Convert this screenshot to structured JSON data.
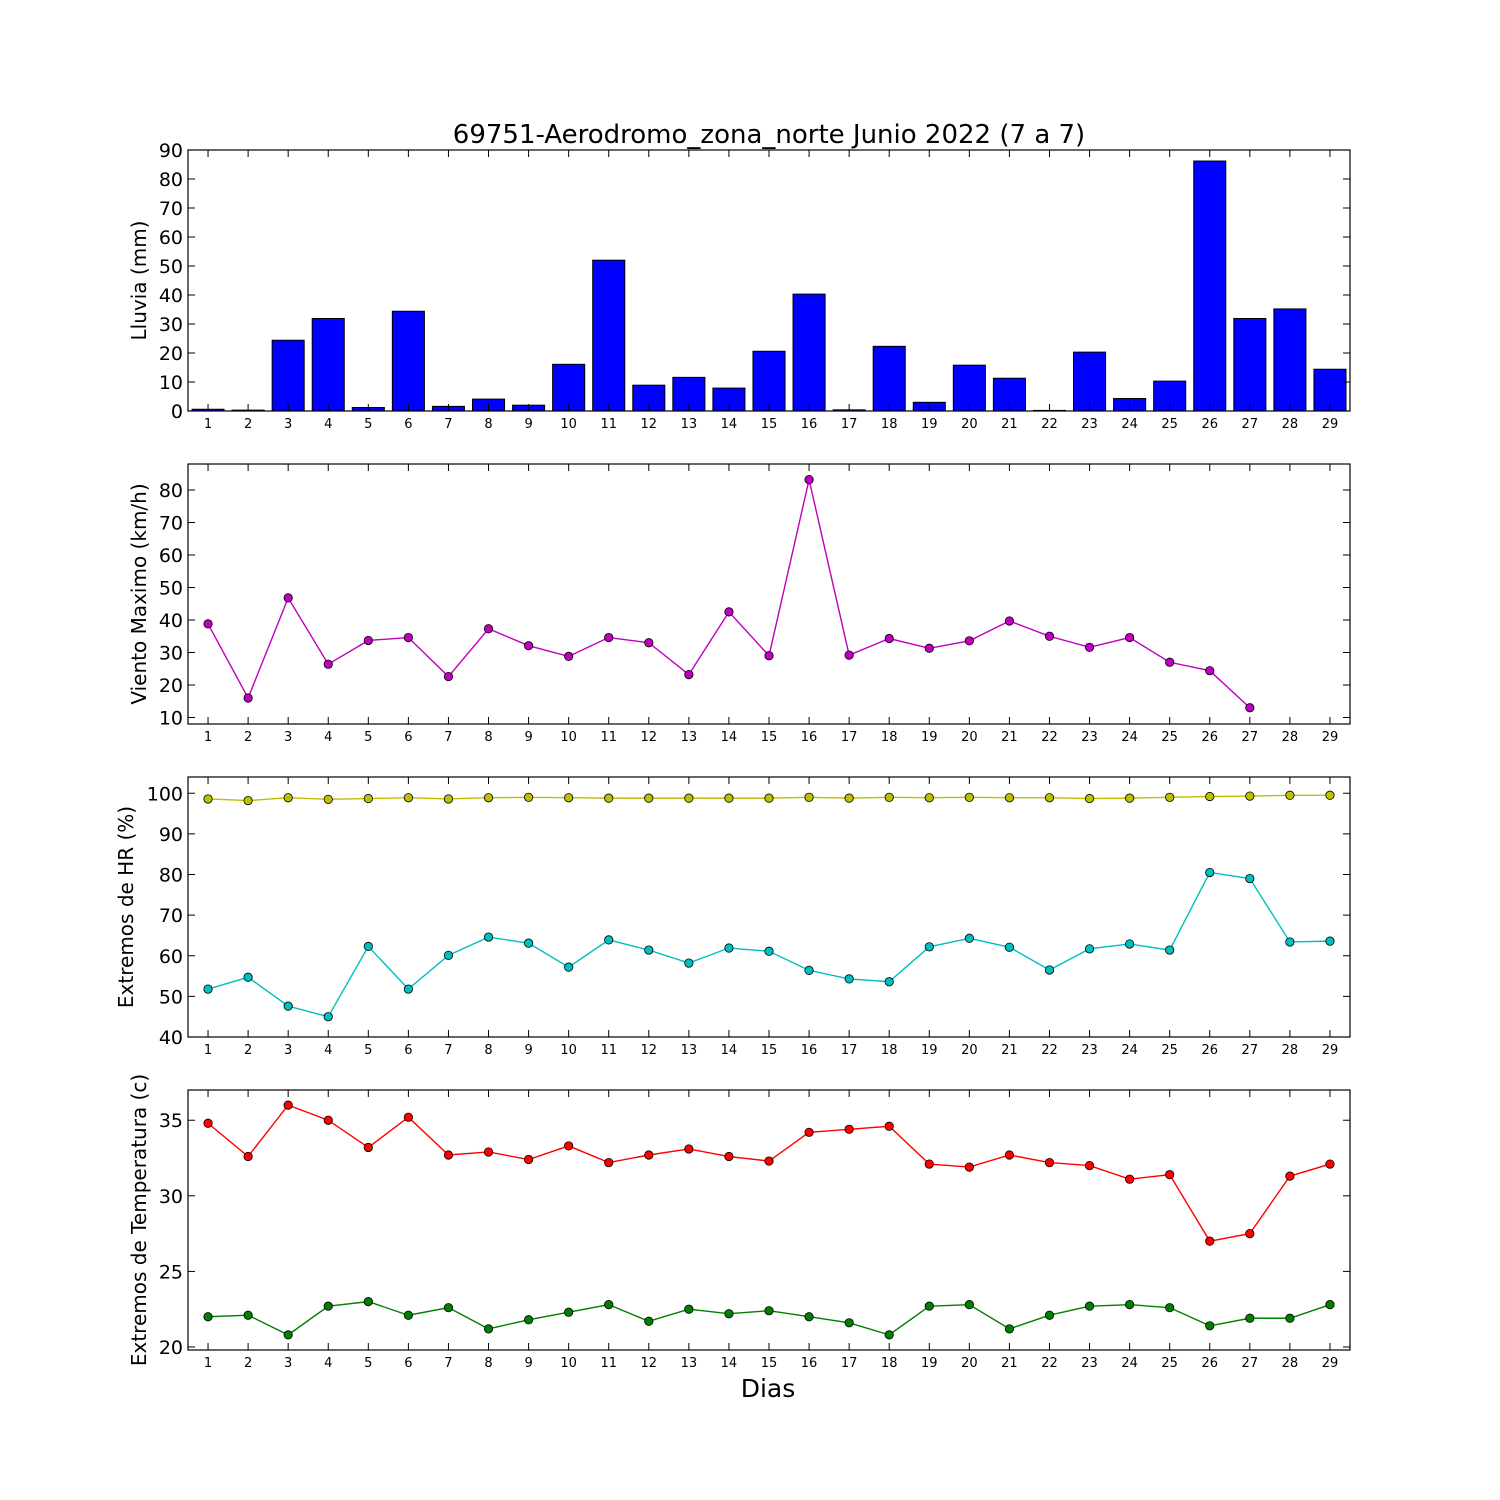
{
  "figure": {
    "title": "69751-Aerodromo_zona_norte Junio 2022  (7 a 7)",
    "xlabel": "Dias",
    "days": [
      "1",
      "2",
      "3",
      "4",
      "5",
      "6",
      "7",
      "8",
      "9",
      "10",
      "11",
      "12",
      "13",
      "14",
      "15",
      "16",
      "17",
      "18",
      "19",
      "20",
      "21",
      "22",
      "23",
      "24",
      "25",
      "26",
      "27",
      "28",
      "29"
    ]
  },
  "chart_data": [
    {
      "type": "bar",
      "ylabel": "Lluvia (mm)",
      "ylim": [
        0,
        90
      ],
      "yticks": [
        0,
        10,
        20,
        30,
        40,
        50,
        60,
        70,
        80,
        90
      ],
      "x": [
        1,
        2,
        3,
        4,
        5,
        6,
        7,
        8,
        9,
        10,
        11,
        12,
        13,
        14,
        15,
        16,
        17,
        18,
        19,
        20,
        21,
        22,
        23,
        24,
        25,
        26,
        27,
        28,
        29
      ],
      "series": [
        {
          "color": "#0000ff",
          "values": [
            0.6,
            0.3,
            24.4,
            31.9,
            1.2,
            34.4,
            1.6,
            4.1,
            2.0,
            16.1,
            52.0,
            8.9,
            11.6,
            7.9,
            20.6,
            40.3,
            0.4,
            22.3,
            3.0,
            15.8,
            11.3,
            0.2,
            20.3,
            4.3,
            10.3,
            86.2,
            31.9,
            35.2,
            14.4
          ]
        }
      ]
    },
    {
      "type": "line",
      "ylabel": "Viento Maximo (km/h)",
      "ylim": [
        8,
        88
      ],
      "yticks": [
        10,
        20,
        30,
        40,
        50,
        60,
        70,
        80
      ],
      "x": [
        1,
        2,
        3,
        4,
        5,
        6,
        7,
        8,
        9,
        10,
        11,
        12,
        13,
        14,
        15,
        16,
        17,
        18,
        19,
        20,
        21,
        22,
        23,
        24,
        25,
        26,
        27,
        28,
        29
      ],
      "series": [
        {
          "color": "#bf00bf",
          "values": [
            38.8,
            16.0,
            46.8,
            26.4,
            33.7,
            34.6,
            22.6,
            37.3,
            32.1,
            28.8,
            34.6,
            33.0,
            23.2,
            42.5,
            29.0,
            83.2,
            29.2,
            34.3,
            31.3,
            33.6,
            39.7,
            35.0,
            31.6,
            34.6,
            27.0,
            24.4,
            13.0,
            null,
            null
          ]
        }
      ]
    },
    {
      "type": "line",
      "ylabel": "Extremos de HR (%)",
      "ylim": [
        40,
        104
      ],
      "yticks": [
        40,
        50,
        60,
        70,
        80,
        90,
        100
      ],
      "x": [
        1,
        2,
        3,
        4,
        5,
        6,
        7,
        8,
        9,
        10,
        11,
        12,
        13,
        14,
        15,
        16,
        17,
        18,
        19,
        20,
        21,
        22,
        23,
        24,
        25,
        26,
        27,
        28,
        29
      ],
      "series": [
        {
          "color": "#bfbf00",
          "values": [
            98.6,
            98.2,
            98.9,
            98.5,
            98.7,
            98.9,
            98.6,
            98.9,
            99.0,
            98.9,
            98.8,
            98.8,
            98.8,
            98.8,
            98.8,
            99.0,
            98.8,
            99.0,
            98.9,
            99.0,
            98.9,
            98.9,
            98.7,
            98.8,
            99.0,
            99.2,
            99.3,
            99.5,
            99.5
          ]
        },
        {
          "color": "#00bfbf",
          "values": [
            51.8,
            54.7,
            47.6,
            45.0,
            62.3,
            51.8,
            60.1,
            64.6,
            63.1,
            57.2,
            63.9,
            61.4,
            58.2,
            61.9,
            61.1,
            56.4,
            54.3,
            53.6,
            62.2,
            64.3,
            62.1,
            56.5,
            61.7,
            62.9,
            61.4,
            80.5,
            79.0,
            63.4,
            63.6
          ]
        }
      ]
    },
    {
      "type": "line",
      "ylabel": "Extremos de Temperatura (c)",
      "ylim": [
        19.8,
        37.0
      ],
      "yticks": [
        20,
        25,
        30,
        35
      ],
      "x": [
        1,
        2,
        3,
        4,
        5,
        6,
        7,
        8,
        9,
        10,
        11,
        12,
        13,
        14,
        15,
        16,
        17,
        18,
        19,
        20,
        21,
        22,
        23,
        24,
        25,
        26,
        27,
        28,
        29
      ],
      "series": [
        {
          "color": "#ff0000",
          "values": [
            34.8,
            32.6,
            36.0,
            35.0,
            33.2,
            35.2,
            32.7,
            32.9,
            32.4,
            33.3,
            32.2,
            32.7,
            33.1,
            32.6,
            32.3,
            34.2,
            34.4,
            34.6,
            32.1,
            31.9,
            32.7,
            32.2,
            32.0,
            31.1,
            31.4,
            27.0,
            27.5,
            31.3,
            32.1
          ]
        },
        {
          "color": "#007f00",
          "values": [
            22.0,
            22.1,
            20.8,
            22.7,
            23.0,
            22.1,
            22.6,
            21.2,
            21.8,
            22.3,
            22.8,
            21.7,
            22.5,
            22.2,
            22.4,
            22.0,
            21.6,
            20.8,
            22.7,
            22.8,
            21.2,
            22.1,
            22.7,
            22.8,
            22.6,
            21.4,
            21.9,
            21.9,
            22.8
          ]
        }
      ]
    }
  ]
}
